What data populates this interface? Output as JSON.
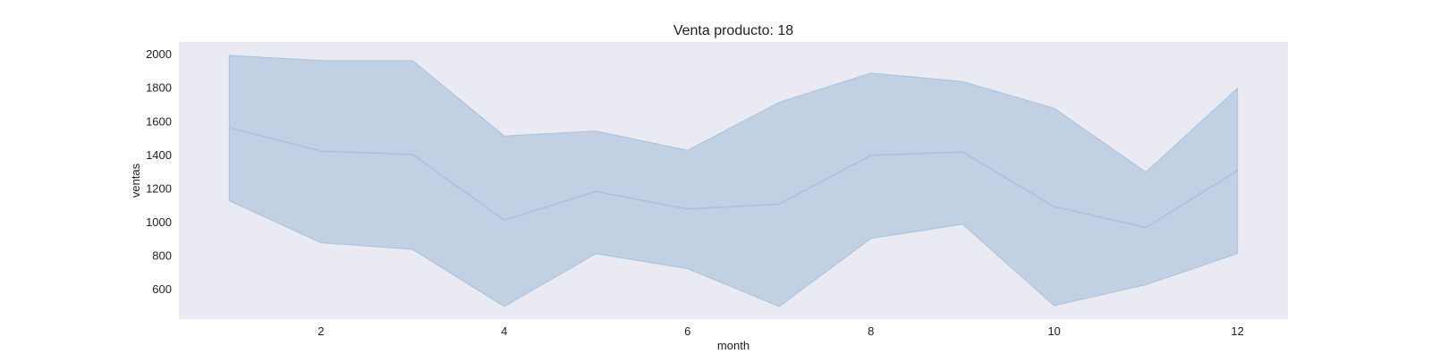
{
  "chart_data": {
    "type": "area",
    "title": "Venta producto: 18",
    "xlabel": "month",
    "ylabel": "ventas",
    "xlim": [
      0.45,
      12.55
    ],
    "ylim": [
      420,
      2070
    ],
    "x_ticks": [
      2,
      4,
      6,
      8,
      10,
      12
    ],
    "y_ticks": [
      600,
      800,
      1000,
      1200,
      1400,
      1600,
      1800,
      2000
    ],
    "grid": false,
    "legend": "none",
    "x": [
      1,
      2,
      3,
      4,
      5,
      6,
      7,
      8,
      9,
      10,
      11,
      12
    ],
    "series": [
      {
        "values": [
          1560,
          1420,
          1400,
          1010,
          1180,
          1075,
          1105,
          1395,
          1415,
          1090,
          965,
          1305
        ],
        "lower": [
          1125,
          875,
          835,
          495,
          810,
          720,
          495,
          900,
          985,
          500,
          625,
          810
        ],
        "upper": [
          1990,
          1960,
          1960,
          1510,
          1540,
          1425,
          1710,
          1885,
          1835,
          1675,
          1295,
          1795
        ]
      }
    ],
    "colors": {
      "plot_background": "#EAEAF2",
      "band_fill": "#C1D1E3",
      "line": "#A7C2DC",
      "band_edge": "#A7C2DC"
    }
  }
}
